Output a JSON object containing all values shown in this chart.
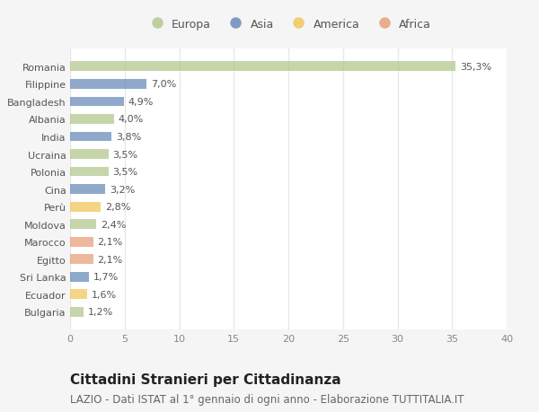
{
  "categories": [
    "Romania",
    "Filippine",
    "Bangladesh",
    "Albania",
    "India",
    "Ucraina",
    "Polonia",
    "Cina",
    "Perù",
    "Moldova",
    "Marocco",
    "Egitto",
    "Sri Lanka",
    "Ecuador",
    "Bulgaria"
  ],
  "values": [
    35.3,
    7.0,
    4.9,
    4.0,
    3.8,
    3.5,
    3.5,
    3.2,
    2.8,
    2.4,
    2.1,
    2.1,
    1.7,
    1.6,
    1.2
  ],
  "labels": [
    "35,3%",
    "7,0%",
    "4,9%",
    "4,0%",
    "3,8%",
    "3,5%",
    "3,5%",
    "3,2%",
    "2,8%",
    "2,4%",
    "2,1%",
    "2,1%",
    "1,7%",
    "1,6%",
    "1,2%"
  ],
  "continents": [
    "Europa",
    "Asia",
    "Asia",
    "Europa",
    "Asia",
    "Europa",
    "Europa",
    "Asia",
    "America",
    "Europa",
    "Africa",
    "Africa",
    "Asia",
    "America",
    "Europa"
  ],
  "colors": {
    "Europa": "#b5c98e",
    "Asia": "#6b8cba",
    "America": "#f0c85a",
    "Africa": "#e8a07a"
  },
  "legend_order": [
    "Europa",
    "Asia",
    "America",
    "Africa"
  ],
  "xlim": [
    0,
    40
  ],
  "xticks": [
    0,
    5,
    10,
    15,
    20,
    25,
    30,
    35,
    40
  ],
  "title": "Cittadini Stranieri per Cittadinanza",
  "subtitle": "LAZIO - Dati ISTAT al 1° gennaio di ogni anno - Elaborazione TUTTITALIA.IT",
  "background_color": "#f5f5f5",
  "plot_bg_color": "#ffffff",
  "grid_color": "#e8e8e8",
  "title_fontsize": 11,
  "subtitle_fontsize": 8.5,
  "label_fontsize": 8,
  "tick_fontsize": 8,
  "legend_fontsize": 9
}
